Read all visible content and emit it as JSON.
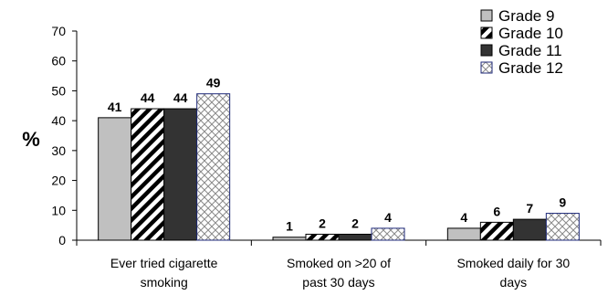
{
  "chart_data": {
    "type": "bar",
    "title": "",
    "xlabel": "",
    "ylabel": "%",
    "ylim": [
      0,
      70
    ],
    "yticks": [
      0,
      10,
      20,
      30,
      40,
      50,
      60,
      70
    ],
    "grid": false,
    "legend_position": "top-right",
    "categories": [
      [
        "Ever tried cigarette",
        "smoking"
      ],
      [
        "Smoked on >20 of",
        "past 30 days"
      ],
      [
        "Smoked daily for 30",
        "days"
      ]
    ],
    "series": [
      {
        "name": "Grade 9",
        "values": [
          41,
          1,
          4
        ],
        "color": "#c0c0c0",
        "pattern": "solid"
      },
      {
        "name": "Grade 10",
        "values": [
          44,
          2,
          6
        ],
        "color": "#000000",
        "pattern": "diagonal-stripes"
      },
      {
        "name": "Grade 11",
        "values": [
          44,
          2,
          7
        ],
        "color": "#333333",
        "pattern": "solid"
      },
      {
        "name": "Grade 12",
        "values": [
          49,
          4,
          9
        ],
        "color": "#1f2a7a",
        "pattern": "crosshatch"
      }
    ]
  }
}
